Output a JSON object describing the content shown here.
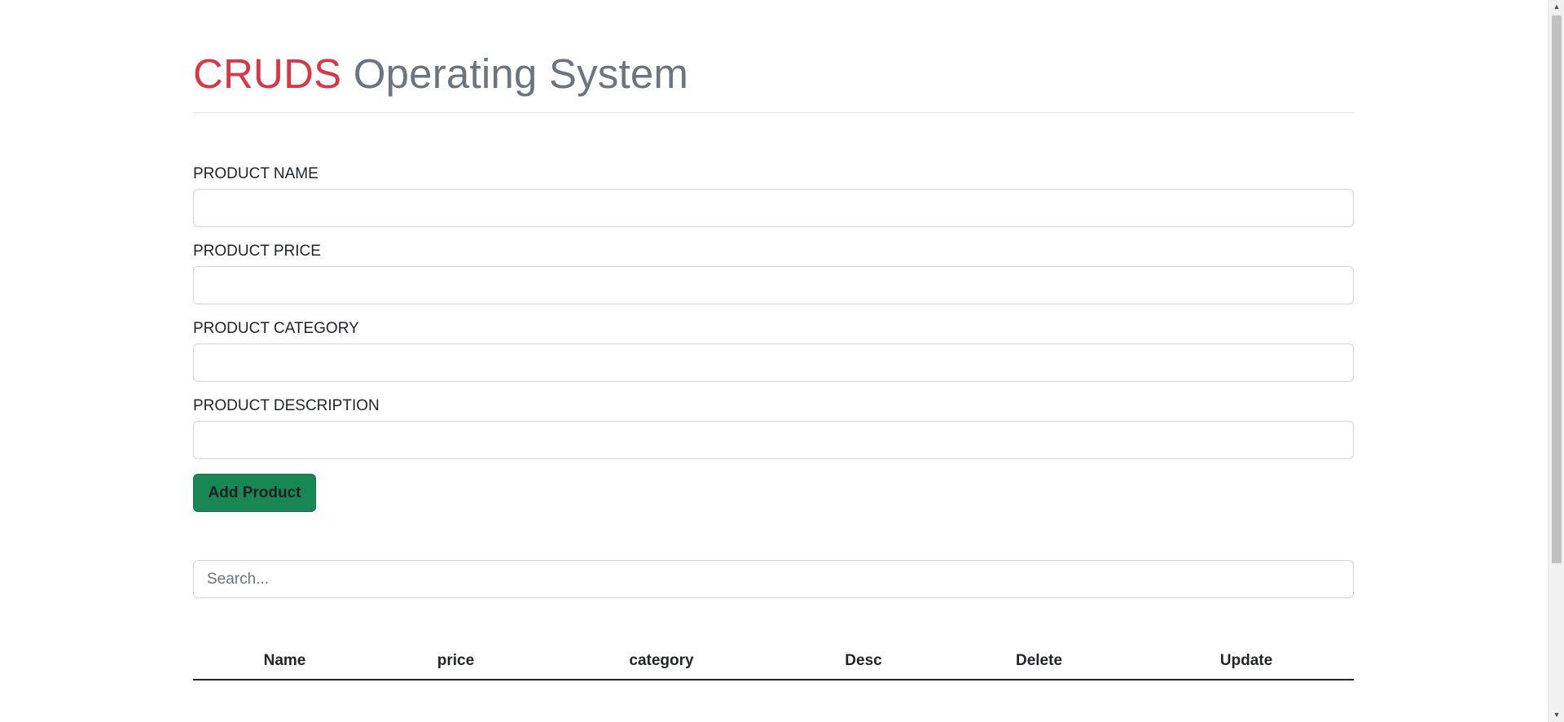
{
  "header": {
    "brand": "CRUDS",
    "title_rest": "Operating System"
  },
  "form": {
    "fields": [
      {
        "label": "PRODUCT NAME",
        "value": "",
        "placeholder": ""
      },
      {
        "label": "PRODUCT PRICE",
        "value": "",
        "placeholder": ""
      },
      {
        "label": "PRODUCT CATEGORY",
        "value": "",
        "placeholder": ""
      },
      {
        "label": "PRODUCT DESCRIPTION",
        "value": "",
        "placeholder": ""
      }
    ],
    "add_button_label": "Add Product"
  },
  "search": {
    "placeholder": "Search...",
    "value": ""
  },
  "table": {
    "columns": [
      "Name",
      "price",
      "category",
      "Desc",
      "Delete",
      "Update"
    ],
    "rows": []
  },
  "colors": {
    "brand": "#dc3545",
    "title_muted": "#6c757d",
    "button_bg": "#198754"
  },
  "icons": {
    "scroll_up": "scroll-up-arrow-icon",
    "scroll_down": "scroll-down-arrow-icon"
  }
}
